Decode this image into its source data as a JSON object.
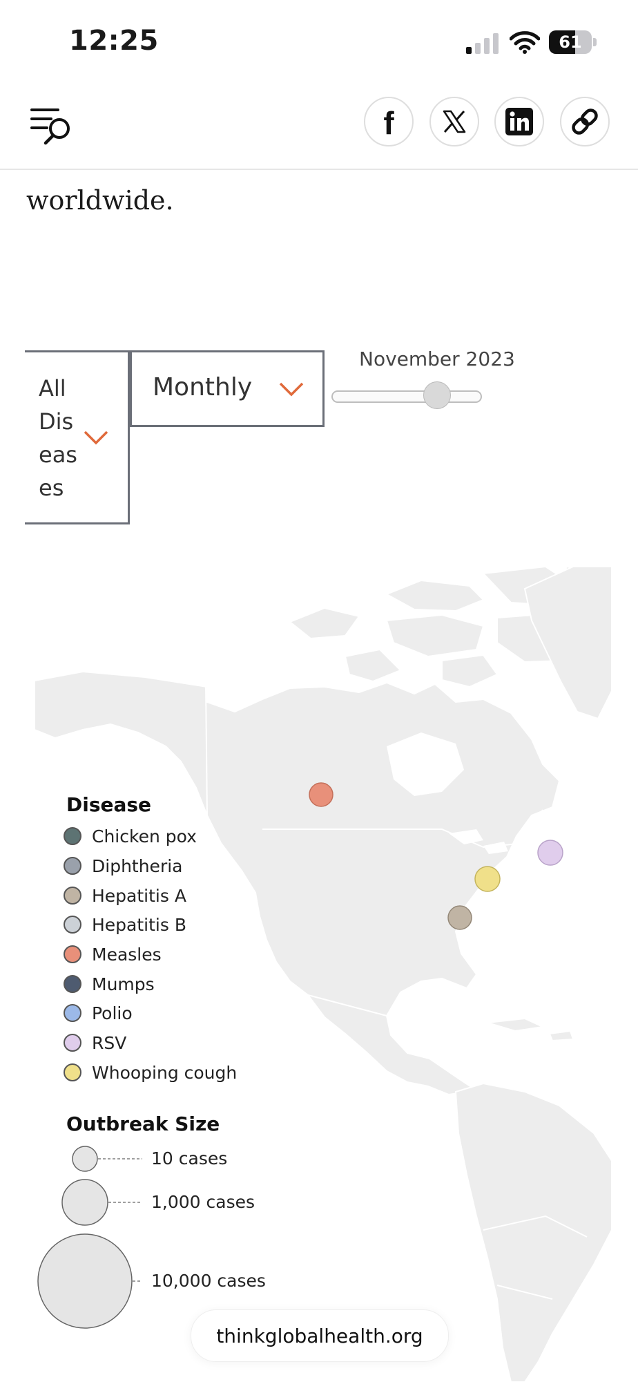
{
  "status_bar": {
    "time": "12:25",
    "battery": "61",
    "battery_level": 0.61
  },
  "nav": {
    "menu_icon": "menu-search-icon",
    "share": [
      {
        "name": "facebook-icon",
        "label": "f"
      },
      {
        "name": "x-icon",
        "label": "𝕏"
      },
      {
        "name": "linkedin-icon",
        "label": "in"
      },
      {
        "name": "link-icon",
        "label": ""
      }
    ]
  },
  "article": {
    "text_fragment": "worldwide."
  },
  "controls": {
    "disease_select": {
      "value": "All Diseases",
      "chevron": "chevron-down-icon"
    },
    "period_select": {
      "value": "Monthly",
      "chevron": "chevron-down-icon"
    },
    "date_slider": {
      "label": "November 2023",
      "position_fraction": 0.71
    },
    "accent_color": "#e06a3b"
  },
  "legend": {
    "disease_title": "Disease",
    "diseases": [
      {
        "label": "Chicken pox",
        "color": "#5d7373"
      },
      {
        "label": "Diphtheria",
        "color": "#9aa1ab"
      },
      {
        "label": "Hepatitis A",
        "color": "#c0b4a4"
      },
      {
        "label": "Hepatitis B",
        "color": "#ccd1d7"
      },
      {
        "label": "Measles",
        "color": "#e8907a"
      },
      {
        "label": "Mumps",
        "color": "#4e5b70"
      },
      {
        "label": "Polio",
        "color": "#9cb9e8"
      },
      {
        "label": "RSV",
        "color": "#e0cdec"
      },
      {
        "label": "Whooping cough",
        "color": "#f0e08a"
      }
    ],
    "size_title": "Outbreak Size",
    "sizes": [
      {
        "label": "10 cases"
      },
      {
        "label": "1,000 cases"
      },
      {
        "label": "10,000 cases"
      }
    ]
  },
  "outbreaks": [
    {
      "disease": "Measles",
      "color": "#e8907a",
      "region": "Alberta, Canada"
    },
    {
      "disease": "RSV",
      "color": "#e0cdec",
      "region": "Nova Scotia, Canada"
    },
    {
      "disease": "Whooping cough",
      "color": "#f0e08a",
      "region": "Virginia, USA"
    },
    {
      "disease": "Hepatitis A",
      "color": "#c0b4a4",
      "region": "Georgia, USA"
    }
  ],
  "source": {
    "label": "thinkglobalhealth.org"
  }
}
